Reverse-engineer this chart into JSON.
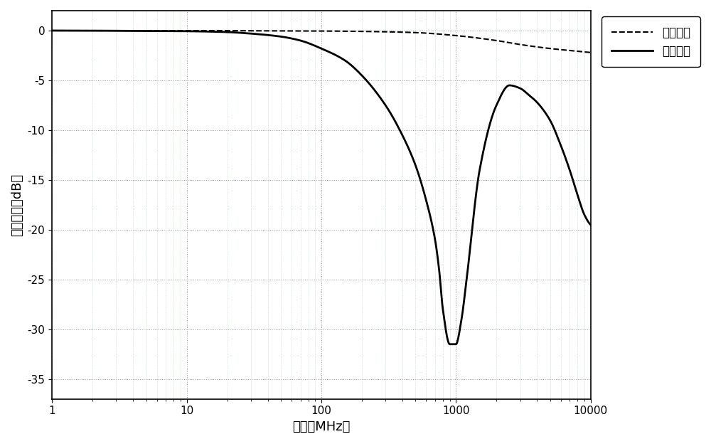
{
  "title": "",
  "xlabel": "频率（MHz）",
  "ylabel": "插入损失（dB）",
  "xlim": [
    1,
    10000
  ],
  "ylim": [
    -37,
    2
  ],
  "yticks": [
    0,
    -5,
    -10,
    -15,
    -20,
    -25,
    -30,
    -35
  ],
  "xticks": [
    1,
    10,
    100,
    1000,
    10000
  ],
  "xtick_labels": [
    "1",
    "10",
    "100",
    "1000",
    "10000"
  ],
  "legend_diff": "差模讯号",
  "legend_cm": "共模讯号",
  "background_color": "#ffffff",
  "grid_major_color": "#aaaaaa",
  "grid_minor_color": "#cccccc",
  "line_color": "#000000",
  "cm_points_f": [
    1,
    2,
    3,
    5,
    8,
    10,
    15,
    20,
    30,
    50,
    70,
    100,
    150,
    200,
    300,
    400,
    500,
    600,
    700,
    750,
    800,
    900,
    1000,
    1100,
    1200,
    1500,
    2000,
    2500,
    3000,
    3500,
    4000,
    5000,
    6000,
    7000,
    8000,
    9000,
    10000
  ],
  "cm_points_db": [
    0,
    -0.01,
    -0.02,
    -0.03,
    -0.05,
    -0.06,
    -0.1,
    -0.15,
    -0.3,
    -0.6,
    -1.0,
    -1.8,
    -3.0,
    -4.5,
    -7.5,
    -10.5,
    -13.5,
    -17.0,
    -21.0,
    -24.0,
    -28.0,
    -31.5,
    -31.5,
    -29.0,
    -25.0,
    -14.0,
    -7.5,
    -5.5,
    -5.8,
    -6.5,
    -7.2,
    -9.0,
    -11.5,
    -14.0,
    -16.5,
    -18.5,
    -19.5
  ],
  "diff_points_f": [
    1,
    2,
    5,
    10,
    20,
    50,
    100,
    200,
    500,
    1000,
    2000,
    3000,
    5000,
    7000,
    10000
  ],
  "diff_points_db": [
    0,
    0,
    0,
    0,
    -0.01,
    -0.02,
    -0.04,
    -0.08,
    -0.2,
    -0.5,
    -1.0,
    -1.4,
    -1.8,
    -2.0,
    -2.2
  ]
}
